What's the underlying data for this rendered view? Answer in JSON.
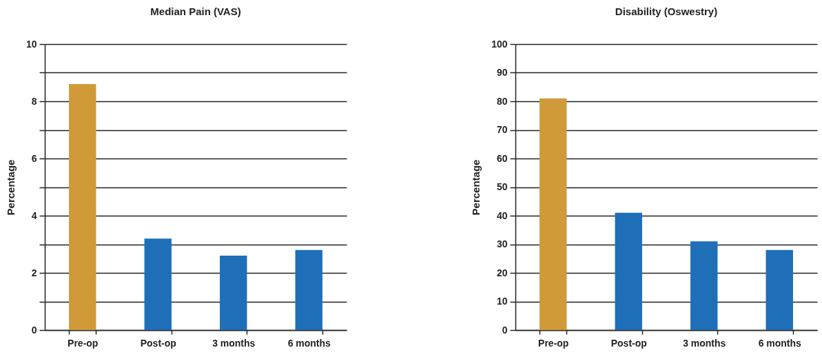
{
  "chart_data": [
    {
      "type": "bar",
      "title": "Median Pain (VAS)",
      "ylabel": "Percentage",
      "categories": [
        "Pre-op",
        "Post-op",
        "3 months",
        "6 months"
      ],
      "values": [
        8.6,
        3.2,
        2.6,
        2.8
      ],
      "colors": [
        "#d09a38",
        "#1f6fb8",
        "#1f6fb8",
        "#1f6fb8"
      ],
      "ylim": [
        0,
        10
      ],
      "yticks": [
        0,
        {
          "value": 1,
          "label": null
        },
        2,
        {
          "value": 3,
          "label": null
        },
        4,
        {
          "value": 5,
          "label": null
        },
        6,
        {
          "value": 7,
          "label": null
        },
        8,
        {
          "value": 9,
          "label": null
        },
        10
      ],
      "grid": "y"
    },
    {
      "type": "bar",
      "title": "Disability (Oswestry)",
      "ylabel": "Percentage",
      "categories": [
        "Pre-op",
        "Post-op",
        "3 months",
        "6 months"
      ],
      "values": [
        81,
        41,
        31,
        28
      ],
      "colors": [
        "#d09a38",
        "#1f6fb8",
        "#1f6fb8",
        "#1f6fb8"
      ],
      "ylim": [
        0,
        100
      ],
      "yticks": [
        0,
        10,
        20,
        30,
        40,
        50,
        60,
        70,
        80,
        90,
        100
      ],
      "grid": "y"
    }
  ]
}
